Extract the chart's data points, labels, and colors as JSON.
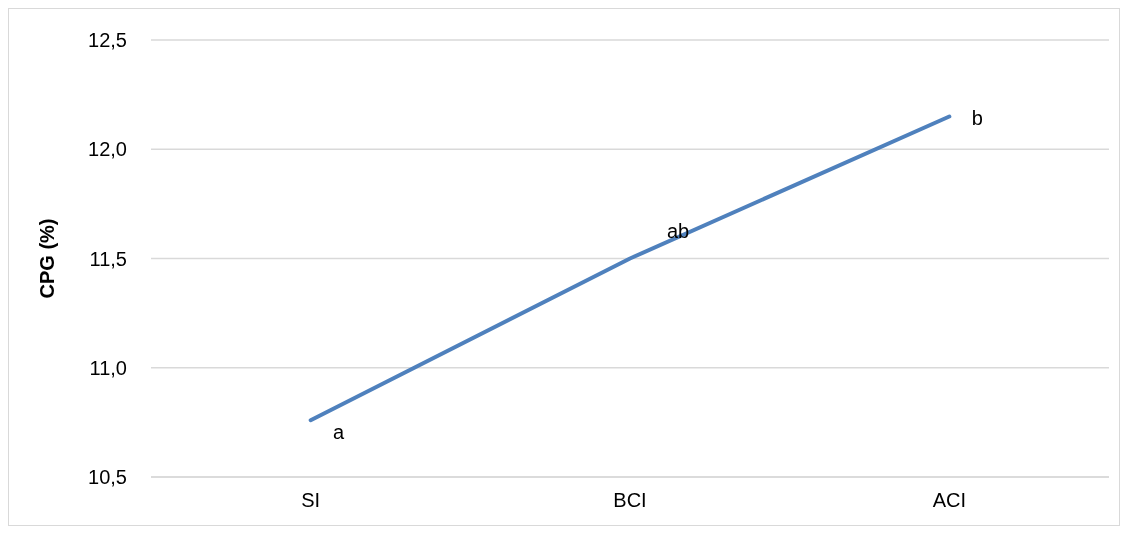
{
  "chart_data": {
    "type": "line",
    "ylabel": "CPG (%)",
    "categories": [
      "SI",
      "BCI",
      "ACI"
    ],
    "series": [
      {
        "color": "#4f81bd",
        "values": [
          10.76,
          11.5,
          12.15
        ]
      }
    ],
    "ylim": [
      10.5,
      12.5
    ],
    "yticks": [
      {
        "value": 10.5,
        "label": "10,5"
      },
      {
        "value": 11,
        "label": "11,0"
      },
      {
        "value": 11.5,
        "label": "11,5"
      },
      {
        "value": 12,
        "label": "12,0"
      },
      {
        "value": 12.5,
        "label": "12,5"
      }
    ],
    "grid": "y",
    "legend": false,
    "marker": "none",
    "line_style": "solid",
    "annotations": [
      {
        "text": "a",
        "x": "SI",
        "y": 10.76
      },
      {
        "text": "ab",
        "x": "BCI",
        "y": 11.5
      },
      {
        "text": "b",
        "x": "ACI",
        "y": 12.15
      }
    ]
  }
}
